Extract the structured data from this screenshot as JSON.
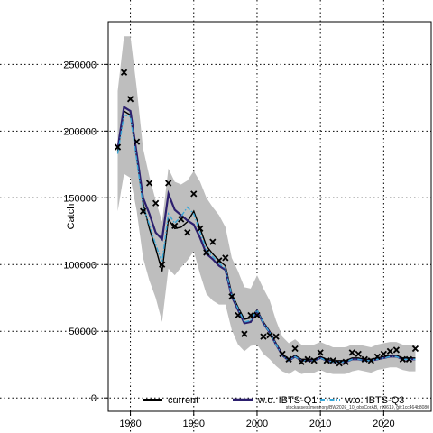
{
  "chart_data": {
    "type": "line",
    "ylabel": "Catch",
    "xlabel": "",
    "xlim": [
      1976.5,
      2027.5
    ],
    "ylim": [
      -10000,
      282000
    ],
    "x_ticks": [
      1980,
      1990,
      2000,
      2010,
      2020
    ],
    "y_ticks": [
      0,
      50000,
      100000,
      150000,
      200000,
      250000
    ],
    "x_tick_labels": [
      "1980",
      "1990",
      "2000",
      "2010",
      "2020"
    ],
    "y_tick_labels": [
      "0",
      "50000",
      "100000",
      "150000",
      "200000",
      "250000"
    ],
    "grid": true,
    "legend_position": "bottom",
    "footer": "stockassessment.org/BW2026_10_obsCorAB, r19619, git:1cc464b8080",
    "years": [
      1978,
      1979,
      1980,
      1981,
      1982,
      1983,
      1984,
      1985,
      1986,
      1987,
      1988,
      1989,
      1990,
      1991,
      1992,
      1993,
      1994,
      1995,
      1996,
      1997,
      1998,
      1999,
      2000,
      2001,
      2002,
      2003,
      2004,
      2005,
      2006,
      2007,
      2008,
      2009,
      2010,
      2011,
      2012,
      2013,
      2014,
      2015,
      2016,
      2017,
      2018,
      2019,
      2020,
      2021,
      2022,
      2023,
      2024,
      2025
    ],
    "observed": [
      188000,
      244000,
      224000,
      192000,
      140000,
      161000,
      146000,
      100000,
      161000,
      129000,
      134000,
      124000,
      153000,
      127000,
      109000,
      117000,
      103000,
      105000,
      76000,
      62000,
      48000,
      62000,
      62000,
      46000,
      47000,
      46000,
      33000,
      29000,
      37000,
      27000,
      29000,
      28000,
      34000,
      28000,
      28000,
      26000,
      27000,
      34000,
      33000,
      29000,
      28000,
      31000,
      33000,
      35000,
      36000,
      29000,
      29000,
      37000
    ],
    "confidence_band": {
      "upper": [
        230000,
        271000,
        271000,
        232000,
        187000,
        166000,
        148000,
        132000,
        172000,
        162000,
        160000,
        163000,
        170000,
        162000,
        150000,
        143000,
        137000,
        128000,
        105000,
        95000,
        83000,
        82000,
        92000,
        82000,
        73000,
        58000,
        46000,
        41000,
        44000,
        40000,
        40000,
        40000,
        42000,
        40000,
        38000,
        38000,
        38000,
        40000,
        40000,
        39000,
        38000,
        40000,
        41000,
        42000,
        42000,
        40000,
        40000,
        40000
      ],
      "lower": [
        140000,
        168000,
        165000,
        140000,
        105000,
        88000,
        75000,
        57000,
        97000,
        92000,
        98000,
        103000,
        110000,
        93000,
        78000,
        73000,
        70000,
        70000,
        51000,
        40000,
        35000,
        39000,
        40000,
        33000,
        29000,
        24000,
        20000,
        18000,
        21000,
        18000,
        19000,
        19000,
        21000,
        19000,
        18000,
        18000,
        18000,
        20000,
        21000,
        20000,
        19000,
        21000,
        22000,
        23000,
        23000,
        21000,
        20000,
        20000
      ]
    },
    "series": [
      {
        "name": "current",
        "color": "#000000",
        "style": "solid",
        "values": [
          185000,
          215000,
          212000,
          180000,
          146000,
          127000,
          112000,
          95000,
          134000,
          127000,
          128000,
          132000,
          140000,
          127000,
          114000,
          108000,
          103000,
          99000,
          78000,
          68000,
          59000,
          60000,
          66000,
          57000,
          50000,
          41000,
          33000,
          29000,
          32000,
          29000,
          29000,
          29000,
          31000,
          29000,
          28000,
          28000,
          28000,
          30000,
          30000,
          29000,
          29000,
          30000,
          31000,
          32000,
          32000,
          30000,
          30000,
          30000
        ]
      },
      {
        "name": "w.o. IBTS-Q1",
        "color": "#2c1f6e",
        "style": "solid",
        "values": [
          187000,
          218000,
          215000,
          183000,
          150000,
          138000,
          124000,
          119000,
          153000,
          141000,
          137000,
          133000,
          130000,
          120000,
          108000,
          104000,
          99000,
          96000,
          76000,
          66000,
          56000,
          57000,
          65000,
          56000,
          49000,
          40000,
          32000,
          28000,
          31000,
          28000,
          28000,
          28000,
          30000,
          28000,
          27000,
          27000,
          27000,
          29000,
          29000,
          28000,
          28000,
          29000,
          30000,
          31000,
          31000,
          29000,
          29000,
          29000
        ]
      },
      {
        "name": "w.o. IBTS-Q3",
        "color": "#3aa8d8",
        "style": "dashed",
        "values": [
          183000,
          212000,
          211000,
          178000,
          144000,
          130000,
          115000,
          102000,
          138000,
          131000,
          136000,
          143000,
          138000,
          124000,
          111000,
          106000,
          101000,
          97000,
          77000,
          67000,
          57000,
          58000,
          66000,
          56000,
          49000,
          40000,
          32000,
          28000,
          31000,
          28000,
          28000,
          28000,
          30000,
          28000,
          27000,
          27000,
          27000,
          29000,
          29000,
          28000,
          28000,
          29000,
          30000,
          31000,
          31000,
          29000,
          29000,
          29000
        ]
      }
    ]
  },
  "colors": {
    "band": "#bebebe",
    "grid": "#000000",
    "marker": "#000000"
  }
}
